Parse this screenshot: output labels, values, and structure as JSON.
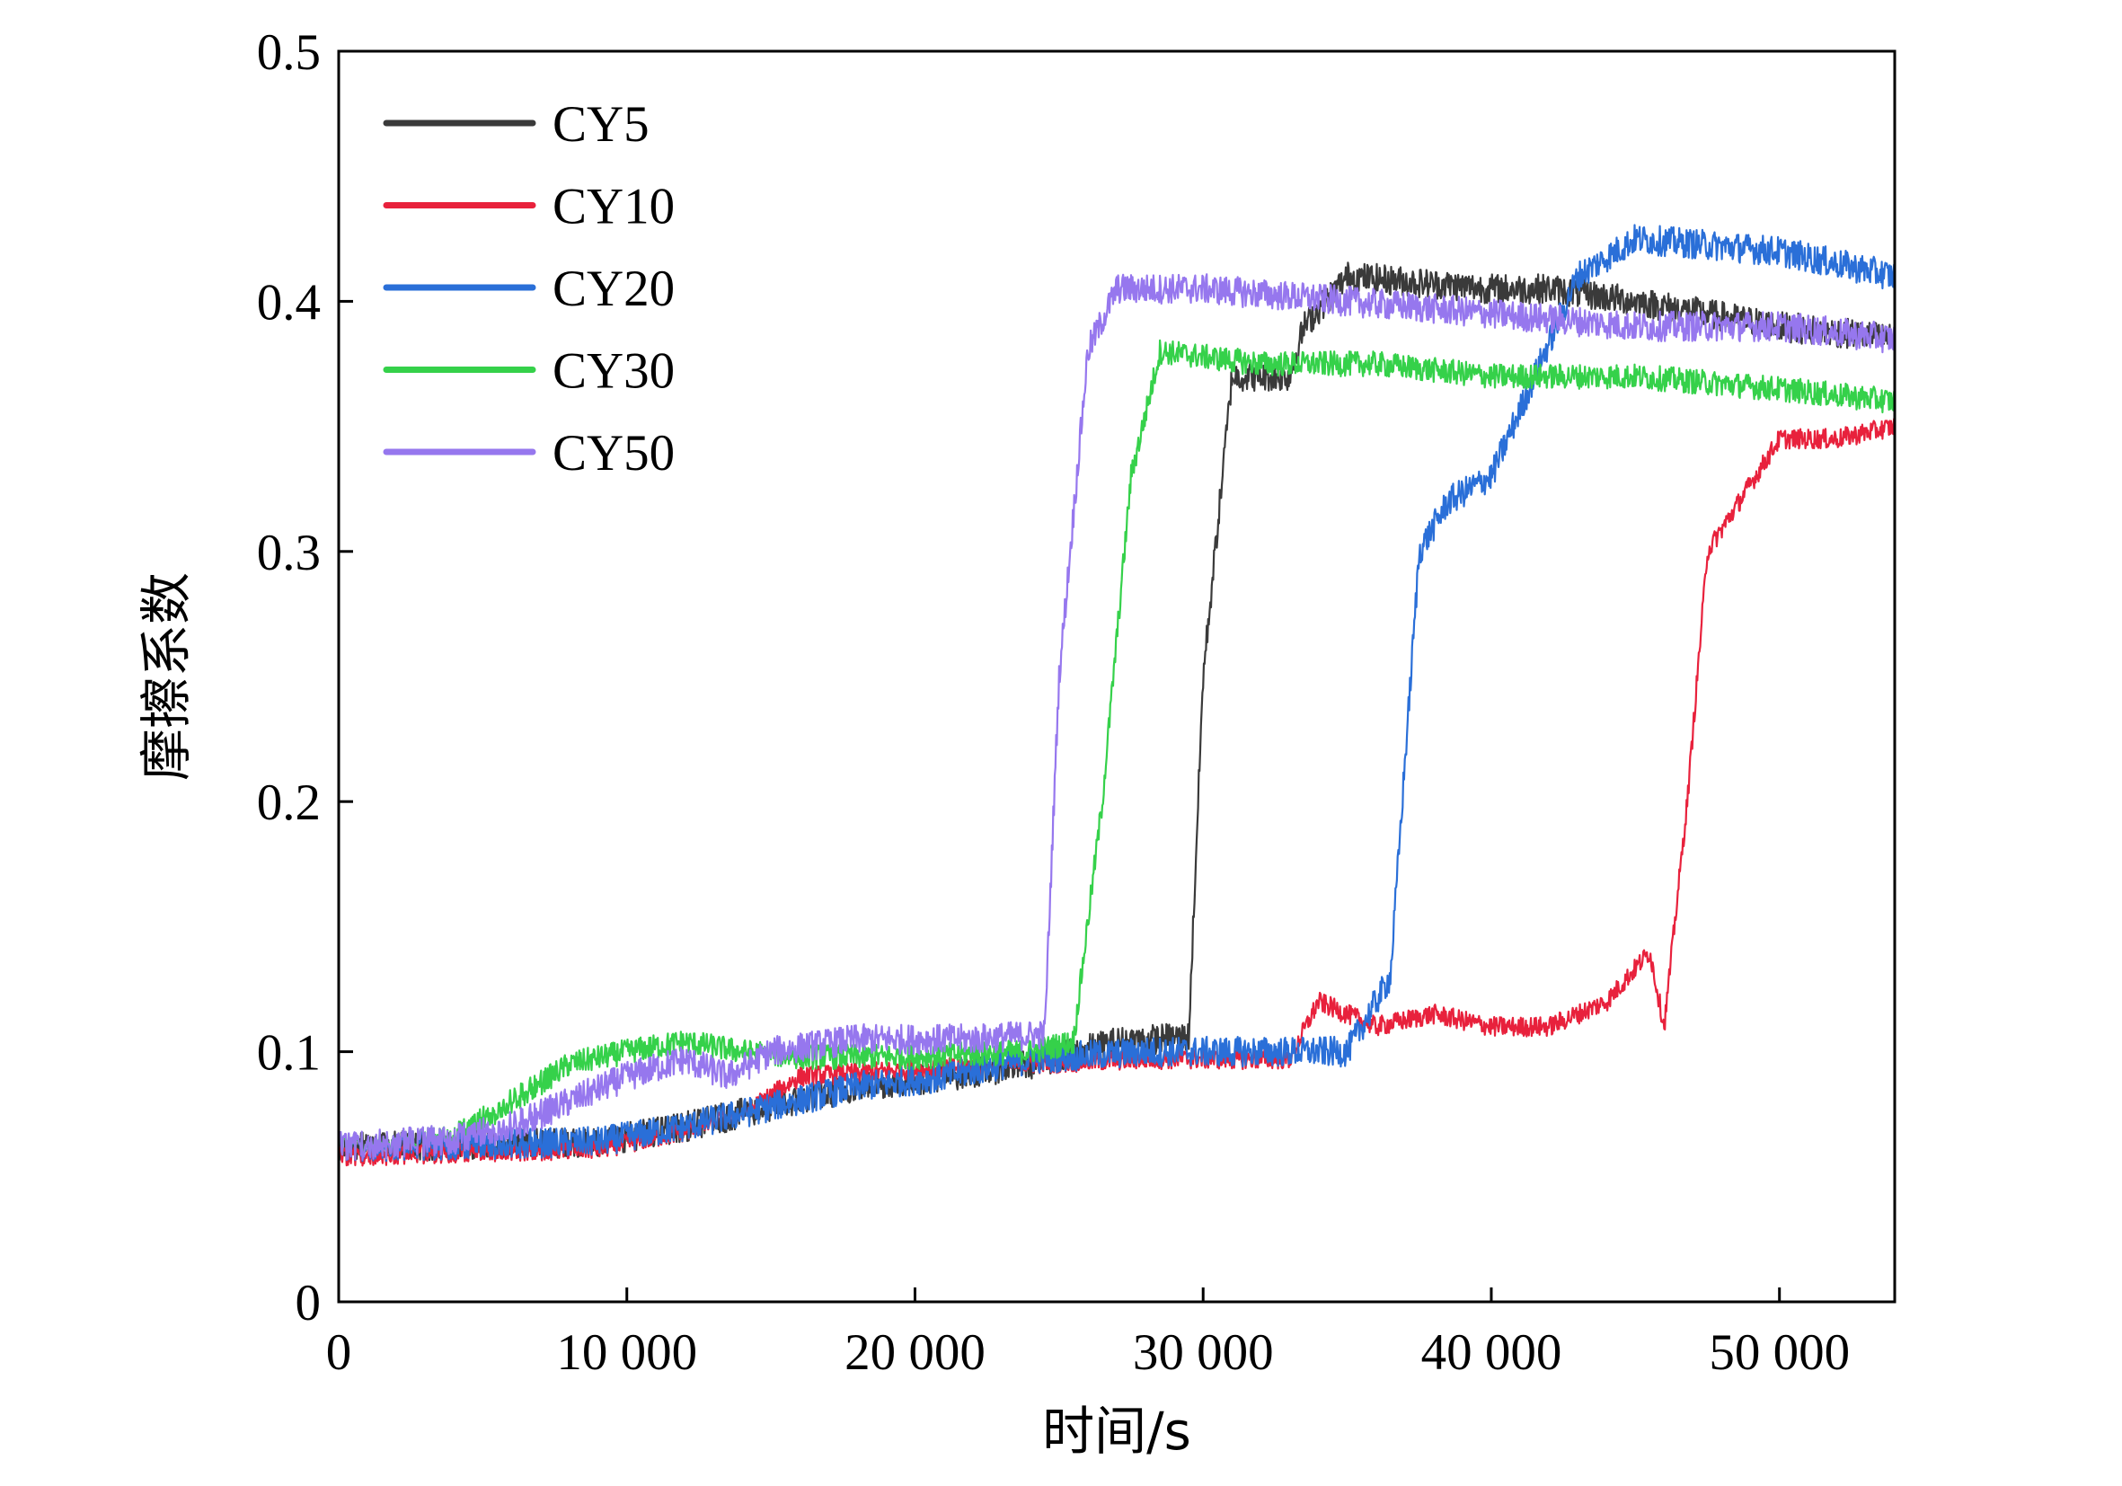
{
  "chart_data": {
    "type": "line",
    "xlabel": "时间/s",
    "ylabel": "摩擦系数",
    "xlim": [
      0,
      54000
    ],
    "ylim": [
      0,
      0.5
    ],
    "x_ticks": [
      0,
      10000,
      20000,
      30000,
      40000,
      50000
    ],
    "x_tick_labels": [
      "0",
      "10 000",
      "20 000",
      "30 000",
      "40 000",
      "50 000"
    ],
    "y_ticks": [
      0,
      0.1,
      0.2,
      0.3,
      0.4,
      0.5
    ],
    "y_tick_labels": [
      "0",
      "0.1",
      "0.2",
      "0.3",
      "0.4",
      "0.5"
    ],
    "grid": false,
    "legend_position": "top-left",
    "series": [
      {
        "name": "CY5",
        "color": "#3a3a3a",
        "noise": 0.006,
        "points": [
          [
            0,
            0.062
          ],
          [
            5000,
            0.063
          ],
          [
            9000,
            0.064
          ],
          [
            12000,
            0.07
          ],
          [
            15000,
            0.078
          ],
          [
            18000,
            0.086
          ],
          [
            21000,
            0.09
          ],
          [
            24000,
            0.095
          ],
          [
            27000,
            0.104
          ],
          [
            29500,
            0.106
          ],
          [
            30000,
            0.25
          ],
          [
            31000,
            0.37
          ],
          [
            32000,
            0.37
          ],
          [
            33000,
            0.37
          ],
          [
            33500,
            0.39
          ],
          [
            35000,
            0.41
          ],
          [
            40000,
            0.405
          ],
          [
            42000,
            0.405
          ],
          [
            45000,
            0.4
          ],
          [
            50000,
            0.39
          ],
          [
            54000,
            0.385
          ]
        ]
      },
      {
        "name": "CY10",
        "color": "#e8213c",
        "noise": 0.004,
        "points": [
          [
            0,
            0.058
          ],
          [
            5000,
            0.06
          ],
          [
            9000,
            0.061
          ],
          [
            12000,
            0.068
          ],
          [
            14000,
            0.075
          ],
          [
            16000,
            0.09
          ],
          [
            20000,
            0.093
          ],
          [
            24000,
            0.095
          ],
          [
            28000,
            0.097
          ],
          [
            33000,
            0.097
          ],
          [
            34000,
            0.12
          ],
          [
            36000,
            0.11
          ],
          [
            38000,
            0.115
          ],
          [
            40000,
            0.11
          ],
          [
            42000,
            0.11
          ],
          [
            44000,
            0.12
          ],
          [
            45500,
            0.14
          ],
          [
            46000,
            0.11
          ],
          [
            46800,
            0.2
          ],
          [
            47500,
            0.3
          ],
          [
            50000,
            0.345
          ],
          [
            52000,
            0.345
          ],
          [
            54000,
            0.35
          ]
        ]
      },
      {
        "name": "CY20",
        "color": "#2a6fd8",
        "noise": 0.006,
        "points": [
          [
            0,
            0.062
          ],
          [
            5000,
            0.063
          ],
          [
            9000,
            0.064
          ],
          [
            12000,
            0.07
          ],
          [
            15000,
            0.078
          ],
          [
            18000,
            0.086
          ],
          [
            21000,
            0.09
          ],
          [
            24000,
            0.097
          ],
          [
            28000,
            0.1
          ],
          [
            33000,
            0.1
          ],
          [
            35000,
            0.1
          ],
          [
            36500,
            0.13
          ],
          [
            37500,
            0.3
          ],
          [
            38500,
            0.32
          ],
          [
            40000,
            0.33
          ],
          [
            41500,
            0.37
          ],
          [
            43000,
            0.41
          ],
          [
            45000,
            0.425
          ],
          [
            50000,
            0.42
          ],
          [
            54000,
            0.41
          ]
        ]
      },
      {
        "name": "CY30",
        "color": "#35d14a",
        "noise": 0.005,
        "points": [
          [
            0,
            0.062
          ],
          [
            4000,
            0.066
          ],
          [
            6000,
            0.08
          ],
          [
            8000,
            0.095
          ],
          [
            10000,
            0.1
          ],
          [
            12000,
            0.104
          ],
          [
            14000,
            0.1
          ],
          [
            16000,
            0.098
          ],
          [
            20000,
            0.098
          ],
          [
            24000,
            0.1
          ],
          [
            25500,
            0.104
          ],
          [
            26500,
            0.2
          ],
          [
            27500,
            0.33
          ],
          [
            28500,
            0.38
          ],
          [
            32000,
            0.375
          ],
          [
            36000,
            0.375
          ],
          [
            40000,
            0.37
          ],
          [
            45000,
            0.37
          ],
          [
            50000,
            0.365
          ],
          [
            54000,
            0.36
          ]
        ]
      },
      {
        "name": "CY50",
        "color": "#9677ee",
        "noise": 0.006,
        "points": [
          [
            0,
            0.062
          ],
          [
            4000,
            0.065
          ],
          [
            6000,
            0.07
          ],
          [
            8000,
            0.08
          ],
          [
            10000,
            0.09
          ],
          [
            12000,
            0.097
          ],
          [
            13500,
            0.09
          ],
          [
            15000,
            0.1
          ],
          [
            18000,
            0.105
          ],
          [
            22000,
            0.105
          ],
          [
            24500,
            0.107
          ],
          [
            25000,
            0.25
          ],
          [
            26000,
            0.38
          ],
          [
            27000,
            0.405
          ],
          [
            30000,
            0.405
          ],
          [
            35000,
            0.4
          ],
          [
            40000,
            0.395
          ],
          [
            45000,
            0.39
          ],
          [
            50000,
            0.39
          ],
          [
            54000,
            0.385
          ]
        ]
      }
    ]
  }
}
